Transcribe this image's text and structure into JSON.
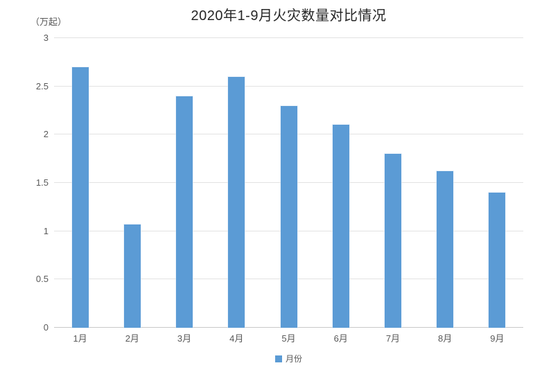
{
  "title": "2020年1-9月火灾数量对比情况",
  "unit_label": "（万起）",
  "legend": {
    "label": "月份",
    "swatch_color": "#5b9bd5"
  },
  "colors": {
    "bar": "#5b9bd5",
    "gridline": "#e2e2e2",
    "axis_line": "#c9c9c9",
    "tick_text": "#595959",
    "title_text": "#262626"
  },
  "chart_data": {
    "type": "bar",
    "title": "2020年1-9月火灾数量对比情况",
    "categories": [
      "1月",
      "2月",
      "3月",
      "4月",
      "5月",
      "6月",
      "7月",
      "8月",
      "9月"
    ],
    "values": [
      2.7,
      1.07,
      2.4,
      2.6,
      2.3,
      2.1,
      1.8,
      1.62,
      1.4
    ],
    "series_name": "月份",
    "xlabel": "",
    "ylabel": "（万起）",
    "ylim": [
      0,
      3
    ],
    "yticks": [
      0,
      0.5,
      1,
      1.5,
      2,
      2.5,
      3
    ],
    "grid": true,
    "legend_entries": [
      "月份"
    ],
    "legend_position": "bottom"
  }
}
